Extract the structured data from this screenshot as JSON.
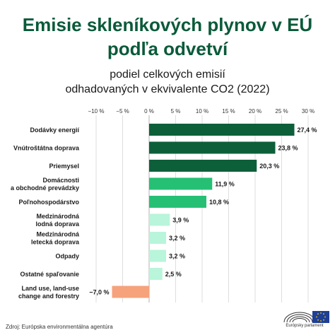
{
  "title_line1": "Emisie skleníkových plynov v EÚ",
  "title_line2": "podľa odvetví",
  "subtitle_line1": "podiel celkových emisií",
  "subtitle_line2": "odhadovaných v ekvivalente CO2 (2022)",
  "source": "Zdroj: Európska environmentálna agentúra",
  "logo_text": "Európsky parlament",
  "chart_data": {
    "type": "bar",
    "orientation": "horizontal",
    "categories": [
      [
        "Dodávky energií"
      ],
      [
        "Vnútroštátna doprava"
      ],
      [
        "Priemysel"
      ],
      [
        "Domácnosti",
        "a obchodné prevádzky"
      ],
      [
        "Poľnohospodárstvo"
      ],
      [
        "Medzinárodná",
        "lodná doprava"
      ],
      [
        "Medzinárodná",
        "letecká doprava"
      ],
      [
        "Odpady"
      ],
      [
        "Ostatné spaľovanie"
      ],
      [
        "Land use, land-use",
        "change and forestry"
      ]
    ],
    "values": [
      27.4,
      23.8,
      20.3,
      11.9,
      10.8,
      3.9,
      3.2,
      3.2,
      2.5,
      -7.0
    ],
    "value_labels": [
      "27,4 %",
      "23,8 %",
      "20,3 %",
      "11,9 %",
      "10,8 %",
      "3,9 %",
      "3,2 %",
      "3,2 %",
      "2,5 %",
      "−7,0 %"
    ],
    "colors": [
      "#0d5f3a",
      "#0d5f3a",
      "#0d5f3a",
      "#25c074",
      "#25c074",
      "#b8f5da",
      "#b8f5da",
      "#b8f5da",
      "#b8f5da",
      "#f6a27b"
    ],
    "xticks": [
      -10,
      -5,
      0,
      5,
      10,
      15,
      20,
      25,
      30
    ],
    "xtick_labels": [
      "−10 %",
      "−5 %",
      "0 %",
      "5 %",
      "10 %",
      "15 %",
      "20 %",
      "25 %",
      "30 %"
    ],
    "xlim": [
      -10,
      30
    ],
    "grid": true
  }
}
